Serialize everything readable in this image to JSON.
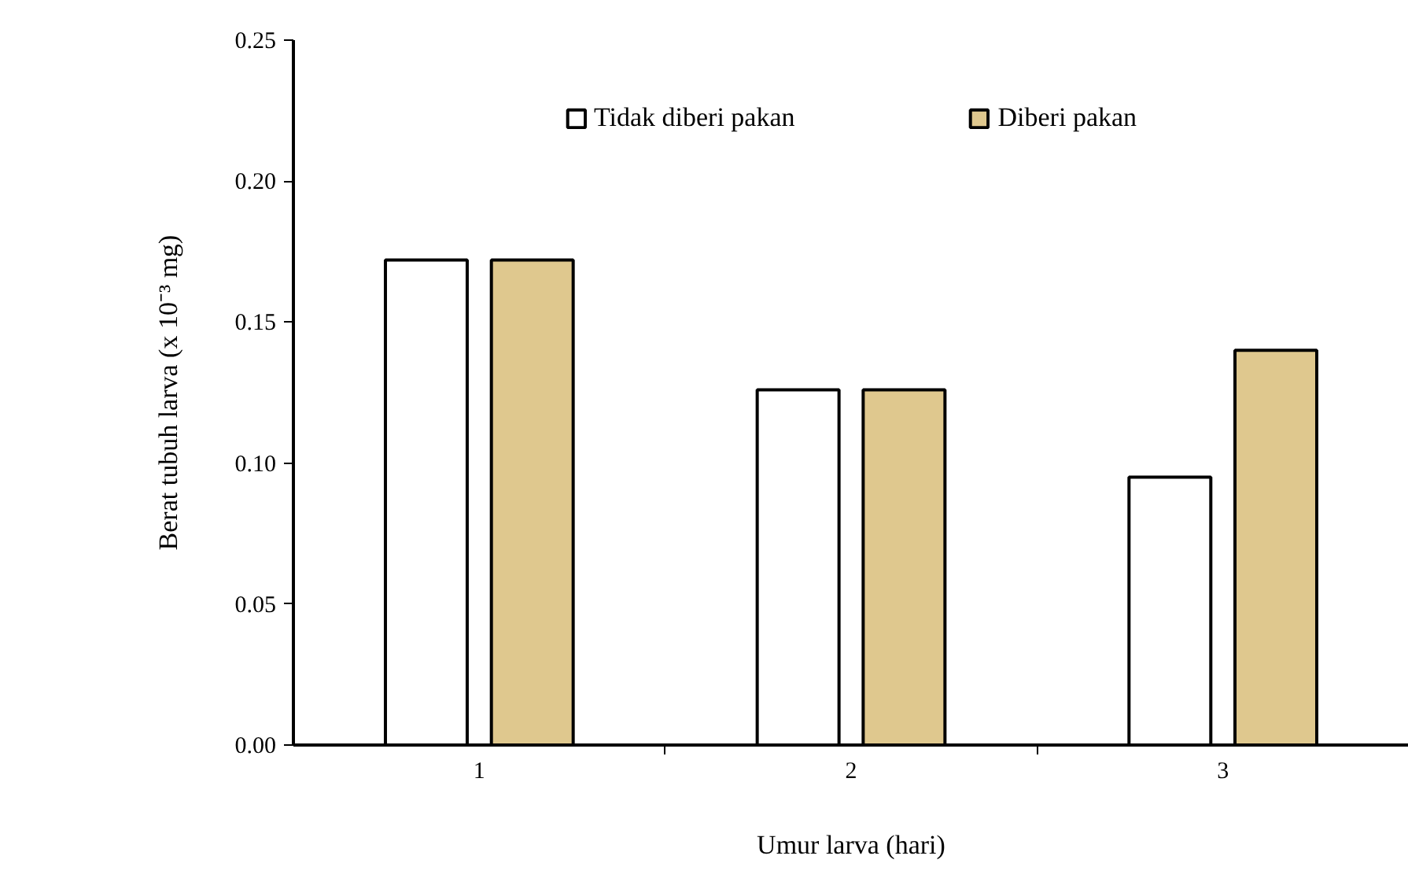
{
  "chart_data": {
    "type": "bar",
    "xlabel": "Umur larva (hari)",
    "ylabel": "Berat tubuh larva (x 10⁻³ mg)",
    "categories": [
      "1",
      "2",
      "3"
    ],
    "series": [
      {
        "name": "Tidak diberi pakan",
        "color": "#ffffff",
        "values": [
          0.172,
          0.126,
          0.095
        ]
      },
      {
        "name": "Diberi pakan",
        "color": "#dfc88e",
        "values": [
          0.172,
          0.126,
          0.14
        ]
      }
    ],
    "ylim": [
      0,
      0.25
    ],
    "yticks": [
      {
        "value": 0,
        "label": "0.00"
      },
      {
        "value": 0.05,
        "label": "0.05"
      },
      {
        "value": 0.1,
        "label": "0.10"
      },
      {
        "value": 0.15,
        "label": "0.15"
      },
      {
        "value": 0.2,
        "label": "0.20"
      },
      {
        "value": 0.25,
        "label": "0.25"
      }
    ],
    "grid": false,
    "legend": "top"
  }
}
